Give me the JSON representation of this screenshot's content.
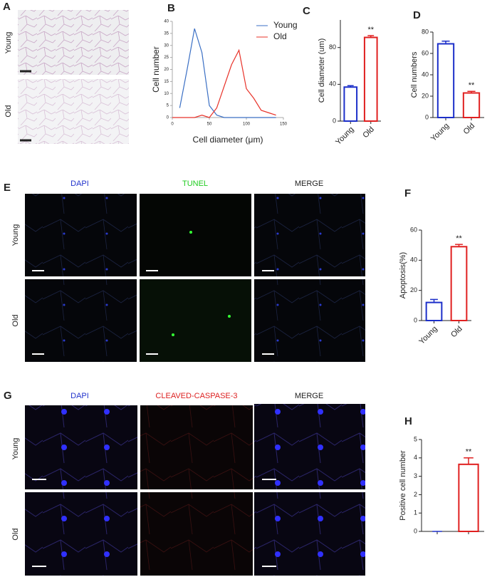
{
  "panel_labels": [
    "A",
    "B",
    "C",
    "D",
    "E",
    "F",
    "G",
    "H"
  ],
  "row_labels": {
    "A": [
      "Young",
      "Old"
    ],
    "E": [
      "Young",
      "Old"
    ],
    "G": [
      "Young",
      "Old"
    ]
  },
  "column_labels": {
    "E": [
      "DAPI",
      "TUNEL",
      "MERGE"
    ],
    "G": [
      "DAPI",
      "CLEAVED-CASPASE-3",
      "MERGE"
    ]
  },
  "chart_data": [
    {
      "type": "line",
      "xlabel": "Cell diameter (μm)",
      "ylabel": "Cell number",
      "x": [
        0,
        10,
        20,
        30,
        40,
        50,
        60,
        70,
        80,
        90,
        100,
        110,
        120,
        130,
        140
      ],
      "series": [
        {
          "name": "Young",
          "color": "#3a6fc4",
          "values": [
            null,
            4,
            20,
            37,
            27,
            5,
            1,
            0,
            0,
            0,
            0,
            0,
            0,
            0,
            0
          ]
        },
        {
          "name": "Old",
          "color": "#e8332a",
          "values": [
            0,
            0,
            0,
            0,
            1,
            0,
            4,
            13,
            22,
            28,
            12,
            8,
            3,
            2,
            1
          ]
        }
      ],
      "xlim": [
        0,
        150
      ],
      "xticks": [
        0,
        50,
        100,
        150
      ],
      "ylim": [
        0,
        40
      ],
      "yticks": [
        0,
        5,
        10,
        15,
        20,
        25,
        30,
        35,
        40
      ]
    },
    {
      "type": "bar",
      "ylabel": "Cell diameter (um)",
      "categories": [
        "Young",
        "Old"
      ],
      "values": [
        37,
        91
      ],
      "errors": [
        1.5,
        2
      ],
      "colors": [
        "#1c2fc9",
        "#e02020"
      ],
      "annotations": [
        null,
        "**"
      ],
      "ylim": [
        0,
        110
      ],
      "yticks": [
        0,
        40,
        80
      ]
    },
    {
      "type": "bar",
      "ylabel": "Cell numbers",
      "categories": [
        "Young",
        "Old"
      ],
      "values": [
        69,
        23
      ],
      "errors": [
        2.5,
        1.5
      ],
      "colors": [
        "#1c2fc9",
        "#e02020"
      ],
      "annotations": [
        null,
        "**"
      ],
      "ylim": [
        0,
        80
      ],
      "yticks": [
        0,
        20,
        40,
        60,
        80
      ]
    },
    {
      "type": "bar",
      "ylabel": "Apoptosis(%)",
      "categories": [
        "Young",
        "Old"
      ],
      "values": [
        12,
        49
      ],
      "errors": [
        2,
        1.5
      ],
      "colors": [
        "#1c2fc9",
        "#e02020"
      ],
      "annotations": [
        null,
        "**"
      ],
      "ylim": [
        0,
        60
      ],
      "yticks": [
        0,
        20,
        40,
        60
      ]
    },
    {
      "type": "bar",
      "ylabel": "Positive cell number",
      "categories": [
        null,
        null
      ],
      "values": [
        0,
        3.65
      ],
      "errors": [
        0,
        0.35
      ],
      "colors": [
        "#1c2fc9",
        "#e02020"
      ],
      "annotations": [
        null,
        "**"
      ],
      "ylim": [
        0,
        5
      ],
      "yticks": [
        0,
        1,
        2,
        3,
        4,
        5
      ]
    }
  ]
}
